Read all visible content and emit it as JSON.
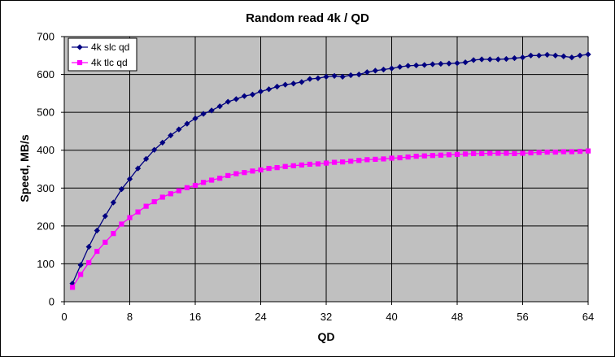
{
  "chart_data": {
    "type": "line",
    "title": "Random read 4k / QD",
    "xlabel": "QD",
    "ylabel": "Speed, MB/s",
    "xlim": [
      0,
      64
    ],
    "ylim": [
      0,
      700
    ],
    "xticks": [
      0,
      8,
      16,
      24,
      32,
      40,
      48,
      56,
      64
    ],
    "yticks": [
      0,
      100,
      200,
      300,
      400,
      500,
      600,
      700
    ],
    "grid": true,
    "legend_position": "top-left",
    "plot_background": "#c0c0c0",
    "series": [
      {
        "name": "4k slc qd",
        "color": "#000080",
        "marker": "diamond",
        "x": [
          1,
          2,
          3,
          4,
          5,
          6,
          7,
          8,
          9,
          10,
          11,
          12,
          13,
          14,
          15,
          16,
          17,
          18,
          19,
          20,
          21,
          22,
          23,
          24,
          25,
          26,
          27,
          28,
          29,
          30,
          31,
          32,
          33,
          34,
          35,
          36,
          37,
          38,
          39,
          40,
          41,
          42,
          43,
          44,
          45,
          46,
          47,
          48,
          49,
          50,
          51,
          52,
          53,
          54,
          55,
          56,
          57,
          58,
          59,
          60,
          61,
          62,
          63,
          64
        ],
        "values": [
          48,
          97,
          145,
          188,
          226,
          262,
          297,
          324,
          352,
          377,
          401,
          420,
          439,
          455,
          470,
          484,
          496,
          505,
          516,
          528,
          535,
          543,
          547,
          555,
          561,
          568,
          573,
          576,
          580,
          588,
          590,
          594,
          596,
          594,
          598,
          600,
          606,
          610,
          613,
          616,
          620,
          623,
          624,
          625,
          627,
          628,
          629,
          630,
          632,
          638,
          640,
          640,
          640,
          641,
          643,
          645,
          650,
          650,
          652,
          650,
          648,
          645,
          650,
          653
        ]
      },
      {
        "name": "4k tlc qd",
        "color": "#ff00ff",
        "marker": "square",
        "x": [
          1,
          2,
          3,
          4,
          5,
          6,
          7,
          8,
          9,
          10,
          11,
          12,
          13,
          14,
          15,
          16,
          17,
          18,
          19,
          20,
          21,
          22,
          23,
          24,
          25,
          26,
          27,
          28,
          29,
          30,
          31,
          32,
          33,
          34,
          35,
          36,
          37,
          38,
          39,
          40,
          41,
          42,
          43,
          44,
          45,
          46,
          47,
          48,
          49,
          50,
          51,
          52,
          53,
          54,
          55,
          56,
          57,
          58,
          59,
          60,
          61,
          62,
          63,
          64
        ],
        "values": [
          38,
          72,
          103,
          133,
          157,
          180,
          205,
          222,
          237,
          252,
          264,
          276,
          285,
          293,
          301,
          307,
          315,
          321,
          326,
          333,
          338,
          341,
          345,
          348,
          352,
          354,
          357,
          359,
          361,
          363,
          364,
          366,
          368,
          369,
          371,
          373,
          375,
          376,
          377,
          379,
          380,
          382,
          384,
          385,
          386,
          387,
          388,
          389,
          390,
          391,
          391,
          392,
          392,
          392,
          391,
          392,
          393,
          394,
          395,
          395,
          396,
          396,
          397,
          398
        ]
      }
    ]
  }
}
